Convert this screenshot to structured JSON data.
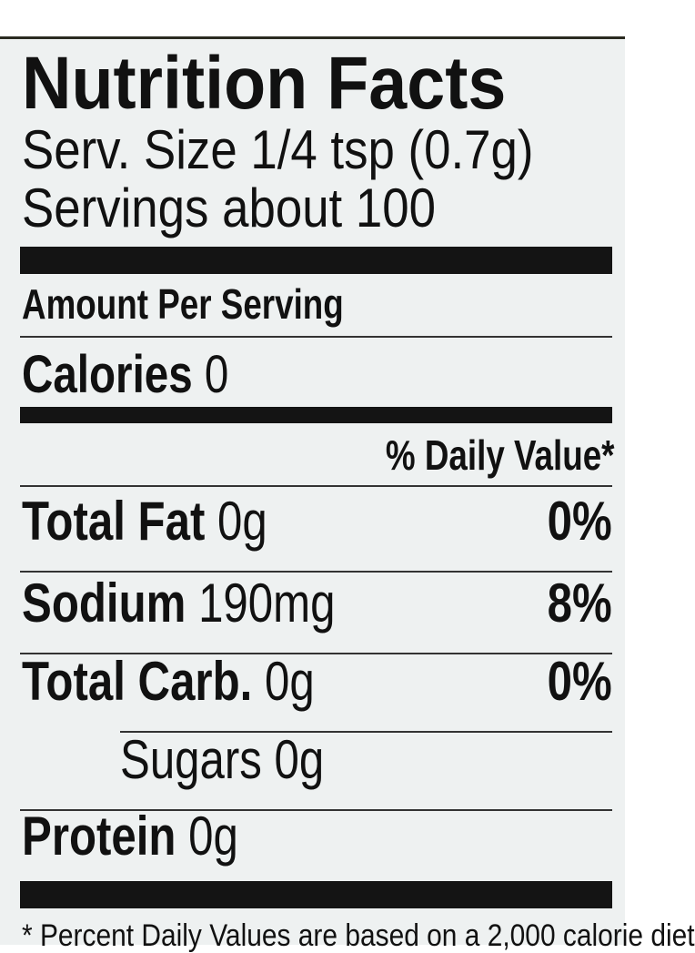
{
  "title": "Nutrition Facts",
  "serving_size": "Serv. Size 1/4 tsp (0.7g)",
  "servings": "Servings about 100",
  "amount_header": "Amount Per Serving",
  "calories": {
    "label": "Calories",
    "value": "0"
  },
  "daily_value_header": "% Daily Value*",
  "rows": [
    {
      "name": "Total Fat",
      "amount": "0g",
      "dv": "0%"
    },
    {
      "name": "Sodium",
      "amount": "190mg",
      "dv": "8%"
    },
    {
      "name": "Total Carb.",
      "amount": "0g",
      "dv": "0%"
    },
    {
      "name": "Sugars",
      "amount": "0g",
      "indent": true
    },
    {
      "name": "Protein",
      "amount": "0g"
    }
  ],
  "footnote": "* Percent Daily Values are based on a 2,000 calorie diet"
}
